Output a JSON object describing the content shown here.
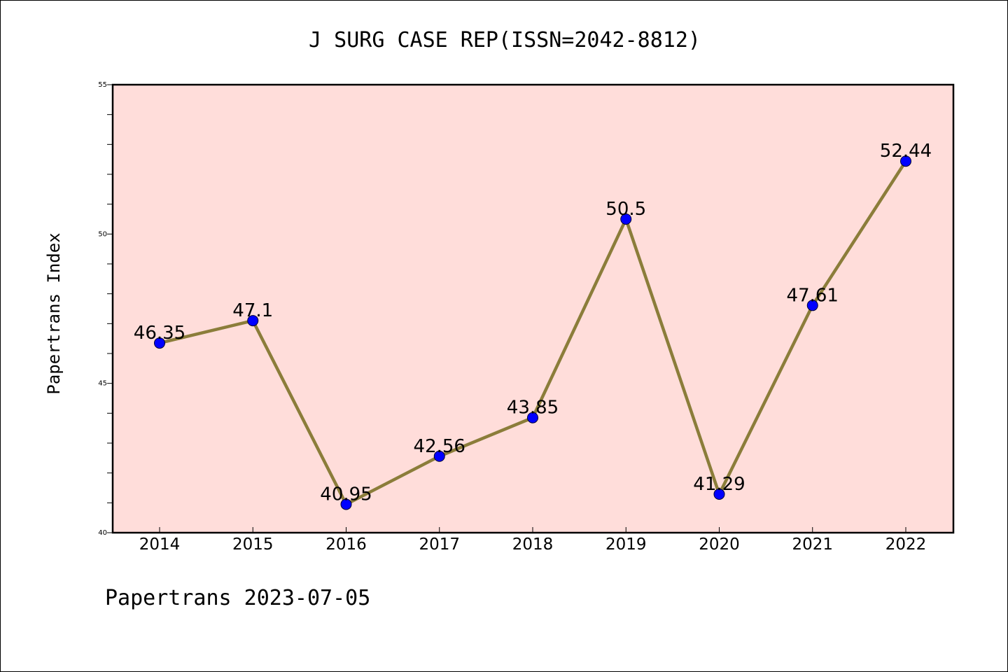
{
  "chart_data": {
    "type": "line",
    "title": "J SURG CASE REP(ISSN=2042-8812)",
    "xlabel": "",
    "ylabel": "Papertrans Index",
    "footer": "Papertrans 2023-07-05",
    "categories": [
      "2014",
      "2015",
      "2016",
      "2017",
      "2018",
      "2019",
      "2020",
      "2021",
      "2022"
    ],
    "series": [
      {
        "values": [
          46.35,
          47.1,
          40.95,
          42.56,
          43.85,
          50.5,
          41.29,
          47.61,
          52.44
        ],
        "labels": [
          "46.35",
          "47.1",
          "40.95",
          "42.56",
          "43.85",
          "50.5",
          "41.29",
          "47.61",
          "52.44"
        ],
        "line_color": "#8B7D3A",
        "marker_color": "#0000FF"
      }
    ],
    "ylim": [
      40,
      55
    ],
    "yticks": [
      "40",
      "45",
      "50",
      "55"
    ],
    "ytick_values": [
      40,
      45,
      50,
      55
    ],
    "plot_background": "#FFDDDA",
    "grid": false,
    "legend": "none"
  }
}
